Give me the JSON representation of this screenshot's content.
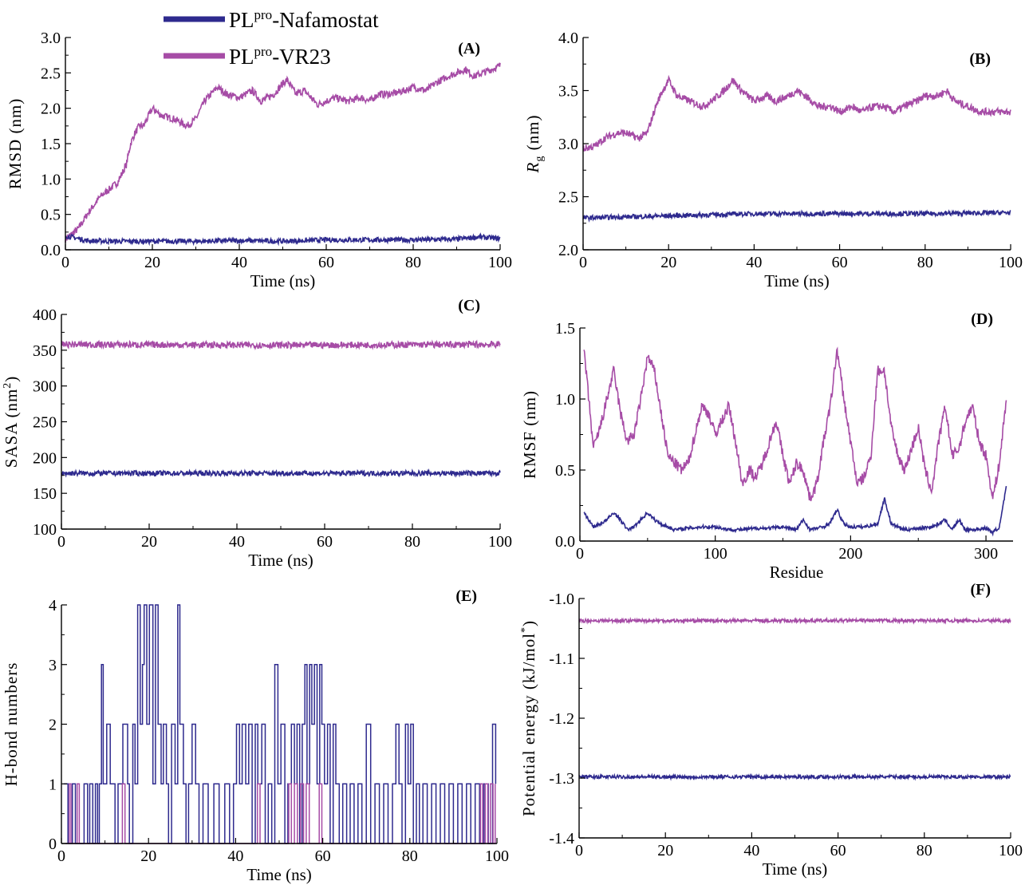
{
  "legend": {
    "nafamostat": {
      "prefix": "PL",
      "sup": "pro",
      "suffix": "-Nafamostat"
    },
    "vr23": {
      "prefix": "PL",
      "sup": "pro",
      "suffix": "-VR23"
    }
  },
  "colors": {
    "nafamostat": "#2e2a8e",
    "vr23": "#a64ca6",
    "axis": "#000000"
  },
  "chart_data": [
    {
      "id": "A",
      "type": "line",
      "panel_label": "(A)",
      "xlabel": "Time (ns)",
      "ylabel": "RMSD (nm)",
      "xlim": [
        0,
        100
      ],
      "ylim": [
        0,
        3.0
      ],
      "xticks": [
        0,
        20,
        40,
        60,
        80,
        100
      ],
      "yticks": [
        0,
        0.5,
        1.0,
        1.5,
        2.0,
        2.5,
        3.0
      ],
      "ytick_labels": [
        "0.0",
        "0.5",
        "1.0",
        "1.5",
        "2.0",
        "2.5",
        "3.0"
      ],
      "series": [
        {
          "name": "PLpro-VR23",
          "color_key": "vr23",
          "noise": 0.05,
          "x": [
            0,
            3,
            5,
            8,
            10,
            12,
            14,
            15,
            16,
            17,
            18,
            20,
            22,
            25,
            28,
            30,
            32,
            35,
            37,
            40,
            43,
            45,
            48,
            50,
            51,
            53,
            55,
            58,
            60,
            62,
            65,
            68,
            70,
            72,
            75,
            78,
            80,
            83,
            85,
            88,
            90,
            92,
            94,
            96,
            98,
            100
          ],
          "y": [
            0.15,
            0.3,
            0.5,
            0.75,
            0.85,
            0.95,
            1.2,
            1.5,
            1.65,
            1.75,
            1.75,
            2.0,
            1.9,
            1.85,
            1.75,
            1.85,
            2.1,
            2.3,
            2.2,
            2.15,
            2.25,
            2.1,
            2.2,
            2.35,
            2.4,
            2.2,
            2.25,
            2.05,
            2.1,
            2.15,
            2.1,
            2.15,
            2.1,
            2.2,
            2.2,
            2.25,
            2.3,
            2.25,
            2.35,
            2.45,
            2.5,
            2.55,
            2.45,
            2.5,
            2.55,
            2.6
          ]
        },
        {
          "name": "PLpro-Nafamostat",
          "color_key": "nafamostat",
          "noise": 0.035,
          "x": [
            0,
            5,
            10,
            20,
            30,
            40,
            50,
            60,
            70,
            80,
            90,
            95,
            100
          ],
          "y": [
            0.2,
            0.13,
            0.12,
            0.12,
            0.12,
            0.13,
            0.12,
            0.14,
            0.14,
            0.14,
            0.15,
            0.18,
            0.16
          ]
        }
      ]
    },
    {
      "id": "B",
      "type": "line",
      "panel_label": "(B)",
      "xlabel": "Time (ns)",
      "ylabel": "Rg (nm)",
      "xlim": [
        0,
        100
      ],
      "ylim": [
        2.0,
        4.0
      ],
      "xticks": [
        0,
        20,
        40,
        60,
        80,
        100
      ],
      "yticks": [
        2.0,
        2.5,
        3.0,
        3.5,
        4.0
      ],
      "ytick_labels": [
        "2.0",
        "2.5",
        "3.0",
        "3.5",
        "4.0"
      ],
      "series": [
        {
          "name": "PLpro-VR23",
          "color_key": "vr23",
          "noise": 0.035,
          "x": [
            0,
            3,
            5,
            8,
            10,
            13,
            15,
            17,
            18,
            20,
            22,
            25,
            28,
            30,
            33,
            35,
            37,
            40,
            43,
            45,
            48,
            50,
            52,
            55,
            58,
            60,
            63,
            65,
            68,
            70,
            73,
            75,
            78,
            80,
            83,
            85,
            87,
            90,
            93,
            95,
            98,
            100
          ],
          "y": [
            2.95,
            2.98,
            3.05,
            3.1,
            3.1,
            3.05,
            3.1,
            3.35,
            3.45,
            3.6,
            3.45,
            3.4,
            3.35,
            3.4,
            3.5,
            3.6,
            3.5,
            3.4,
            3.45,
            3.4,
            3.45,
            3.5,
            3.45,
            3.35,
            3.35,
            3.3,
            3.35,
            3.3,
            3.35,
            3.35,
            3.3,
            3.35,
            3.4,
            3.45,
            3.45,
            3.5,
            3.4,
            3.35,
            3.3,
            3.3,
            3.3,
            3.3
          ]
        },
        {
          "name": "PLpro-Nafamostat",
          "color_key": "nafamostat",
          "noise": 0.022,
          "x": [
            0,
            20,
            40,
            60,
            80,
            100
          ],
          "y": [
            2.3,
            2.32,
            2.34,
            2.34,
            2.34,
            2.35
          ]
        }
      ]
    },
    {
      "id": "C",
      "type": "line",
      "panel_label": "(C)",
      "xlabel": "Time (ns)",
      "ylabel": "SASA (nm2)",
      "xlim": [
        0,
        100
      ],
      "ylim": [
        100,
        400
      ],
      "xticks": [
        0,
        20,
        40,
        60,
        80,
        100
      ],
      "yticks": [
        100,
        150,
        200,
        250,
        300,
        350,
        400
      ],
      "ytick_labels": [
        "100",
        "150",
        "200",
        "250",
        "300",
        "350",
        "400"
      ],
      "series": [
        {
          "name": "PLpro-VR23",
          "color_key": "vr23",
          "noise": 4.5,
          "x": [
            0,
            50,
            100
          ],
          "y": [
            358,
            357,
            358
          ]
        },
        {
          "name": "PLpro-Nafamostat",
          "color_key": "nafamostat",
          "noise": 3.5,
          "x": [
            0,
            50,
            100
          ],
          "y": [
            178,
            178,
            178
          ]
        }
      ]
    },
    {
      "id": "D",
      "type": "line",
      "panel_label": "(D)",
      "xlabel": "Residue",
      "ylabel": "RMSF (nm)",
      "xlim": [
        0,
        320
      ],
      "ylim": [
        0,
        1.5
      ],
      "xticks": [
        0,
        100,
        200,
        300
      ],
      "yticks": [
        0,
        0.5,
        1.0,
        1.5
      ],
      "ytick_labels": [
        "0.0",
        "0.5",
        "1.0",
        "1.5"
      ],
      "series": [
        {
          "name": "PLpro-VR23",
          "color_key": "vr23",
          "noise": 0.04,
          "x": [
            3,
            10,
            15,
            20,
            25,
            30,
            35,
            40,
            45,
            50,
            55,
            60,
            65,
            70,
            75,
            80,
            85,
            90,
            95,
            100,
            105,
            110,
            115,
            120,
            125,
            130,
            135,
            140,
            145,
            150,
            155,
            160,
            165,
            170,
            175,
            180,
            185,
            190,
            195,
            200,
            205,
            210,
            215,
            220,
            225,
            230,
            235,
            240,
            245,
            250,
            255,
            260,
            265,
            270,
            275,
            280,
            285,
            290,
            295,
            300,
            305,
            310,
            315
          ],
          "y": [
            1.35,
            0.65,
            0.8,
            1.0,
            1.2,
            0.9,
            0.7,
            0.75,
            1.0,
            1.3,
            1.2,
            0.9,
            0.6,
            0.55,
            0.5,
            0.55,
            0.75,
            0.95,
            0.9,
            0.75,
            0.85,
            0.95,
            0.7,
            0.4,
            0.5,
            0.45,
            0.55,
            0.7,
            0.85,
            0.6,
            0.4,
            0.55,
            0.5,
            0.3,
            0.4,
            0.7,
            0.95,
            1.35,
            1.0,
            0.7,
            0.4,
            0.45,
            0.6,
            1.2,
            1.2,
            0.8,
            0.6,
            0.5,
            0.65,
            0.8,
            0.5,
            0.35,
            0.7,
            0.95,
            0.6,
            0.65,
            0.85,
            0.95,
            0.7,
            0.6,
            0.3,
            0.55,
            1.0
          ]
        },
        {
          "name": "PLpro-Nafamostat",
          "color_key": "nafamostat",
          "noise": 0.012,
          "x": [
            3,
            10,
            15,
            20,
            25,
            30,
            35,
            40,
            45,
            50,
            55,
            60,
            65,
            70,
            80,
            90,
            100,
            110,
            120,
            130,
            140,
            150,
            160,
            165,
            170,
            180,
            185,
            190,
            195,
            200,
            210,
            220,
            225,
            230,
            235,
            240,
            250,
            260,
            265,
            270,
            275,
            280,
            285,
            290,
            300,
            305,
            310,
            315
          ],
          "y": [
            0.2,
            0.1,
            0.12,
            0.15,
            0.2,
            0.15,
            0.08,
            0.1,
            0.15,
            0.2,
            0.15,
            0.12,
            0.1,
            0.08,
            0.09,
            0.1,
            0.1,
            0.08,
            0.08,
            0.09,
            0.09,
            0.1,
            0.08,
            0.15,
            0.08,
            0.1,
            0.13,
            0.22,
            0.12,
            0.1,
            0.1,
            0.12,
            0.3,
            0.12,
            0.1,
            0.08,
            0.09,
            0.1,
            0.12,
            0.15,
            0.08,
            0.15,
            0.08,
            0.08,
            0.09,
            0.06,
            0.1,
            0.38
          ]
        }
      ]
    },
    {
      "id": "E",
      "type": "line",
      "panel_label": "(E)",
      "xlabel": "Time (ns)",
      "ylabel": "H-bond numbers",
      "xlim": [
        0,
        100
      ],
      "ylim": [
        0,
        4
      ],
      "xticks": [
        0,
        20,
        40,
        60,
        80,
        100
      ],
      "yticks": [
        0,
        1,
        2,
        3,
        4
      ],
      "ytick_labels": [
        "0",
        "1",
        "2",
        "3",
        "4"
      ],
      "series": [
        {
          "name": "PLpro-Nafamostat",
          "color_key": "nafamostat",
          "x": [
            0.5,
            1.5,
            2.5,
            3.2,
            5.2,
            6.0,
            6.5,
            7.2,
            7.8,
            8.3,
            8.7,
            9.2,
            9.6,
            10.4,
            11.2,
            12.3,
            13.0,
            14.1,
            15.2,
            15.6,
            16.4,
            16.9,
            17.5,
            18.1,
            18.6,
            19.0,
            19.6,
            20.2,
            21.0,
            21.6,
            22.2,
            22.9,
            23.4,
            24.1,
            24.6,
            25.3,
            26.1,
            26.7,
            27.2,
            28.0,
            28.6,
            29.2,
            30.0,
            30.8,
            31.6,
            32.5,
            33.7,
            35.0,
            36.2,
            37.5,
            38.6,
            39.5,
            40.2,
            40.9,
            41.5,
            42.3,
            43.0,
            43.8,
            44.5,
            45.1,
            46.0,
            46.8,
            47.5,
            48.3,
            49.0,
            49.7,
            50.4,
            51.3,
            52.0,
            52.8,
            53.5,
            54.1,
            54.7,
            55.3,
            55.9,
            56.4,
            57.0,
            57.5,
            58.1,
            58.7,
            59.3,
            59.8,
            60.4,
            61.1,
            61.7,
            62.4,
            63.0,
            63.8,
            64.6,
            65.5,
            66.3,
            67.2,
            68.1,
            69.0,
            70.0,
            71.0,
            72.0,
            73.0,
            74.0,
            75.0,
            76.0,
            76.8,
            77.5,
            78.2,
            79.0,
            79.6,
            80.2,
            80.8,
            81.5,
            82.2,
            83.0,
            84.0,
            85.0,
            86.0,
            87.0,
            88.0,
            89.0,
            90.0,
            91.0,
            92.0,
            93.0,
            94.0,
            95.0,
            96.0,
            97.0,
            98.0,
            99.0,
            99.7
          ],
          "y": [
            1,
            0,
            1,
            0,
            1,
            0,
            1,
            0,
            1,
            0,
            1,
            3,
            1,
            2,
            1,
            0,
            1,
            2,
            1,
            0,
            2,
            1,
            4,
            2,
            3,
            4,
            2,
            4,
            1,
            4,
            2,
            1,
            2,
            1,
            0,
            2,
            1,
            4,
            2,
            1,
            0,
            1,
            2,
            1,
            0,
            1,
            0,
            1,
            0,
            1,
            0,
            1,
            2,
            1,
            2,
            1,
            2,
            0,
            2,
            1,
            2,
            0,
            1,
            0,
            3,
            1,
            2,
            0,
            1,
            2,
            1,
            2,
            0,
            2,
            3,
            1,
            3,
            2,
            3,
            1,
            3,
            2,
            1,
            2,
            0,
            2,
            1,
            0,
            1,
            0,
            1,
            0,
            1,
            0,
            2,
            0,
            1,
            0,
            1,
            0,
            1,
            2,
            1,
            0,
            2,
            1,
            2,
            0,
            1,
            0,
            1,
            0,
            1,
            0,
            1,
            0,
            1,
            0,
            1,
            0,
            1,
            0,
            1,
            0,
            1,
            0,
            2,
            1
          ]
        },
        {
          "name": "PLpro-VR23",
          "color_key": "vr23",
          "x": [
            1.0,
            1.8,
            2.2,
            3.6,
            4.1,
            14.0,
            14.6,
            45.0,
            45.6,
            52.2,
            52.8,
            53.5,
            54.2,
            54.9,
            55.6,
            56.2,
            56.9,
            59.2,
            59.8,
            96.2,
            96.7,
            97.3,
            97.9,
            98.5,
            99.1,
            99.6
          ],
          "y": [
            0,
            1,
            0,
            1,
            0,
            1,
            0,
            1,
            0,
            1,
            0,
            1,
            0,
            1,
            0,
            1,
            0,
            1,
            0,
            1,
            0,
            1,
            0,
            1,
            0,
            1
          ]
        }
      ]
    },
    {
      "id": "F",
      "type": "line",
      "panel_label": "(F)",
      "xlabel": "Time (ns)",
      "ylabel": "Potential energy (kJ/mol*)",
      "xlim": [
        0,
        100
      ],
      "ylim": [
        -1.4,
        -1.0
      ],
      "xticks": [
        0,
        20,
        40,
        60,
        80,
        100
      ],
      "yticks": [
        -1.4,
        -1.3,
        -1.2,
        -1.1,
        -1.0
      ],
      "ytick_labels": [
        "-1.4",
        "-1.3",
        "-1.2",
        "-1.1",
        "-1.0"
      ],
      "series": [
        {
          "name": "PLpro-VR23",
          "color_key": "vr23",
          "noise": 0.0028,
          "x": [
            0,
            50,
            100
          ],
          "y": [
            -1.037,
            -1.037,
            -1.037
          ]
        },
        {
          "name": "PLpro-Nafamostat",
          "color_key": "nafamostat",
          "noise": 0.0028,
          "x": [
            0,
            50,
            100
          ],
          "y": [
            -1.298,
            -1.298,
            -1.298
          ]
        }
      ]
    }
  ]
}
